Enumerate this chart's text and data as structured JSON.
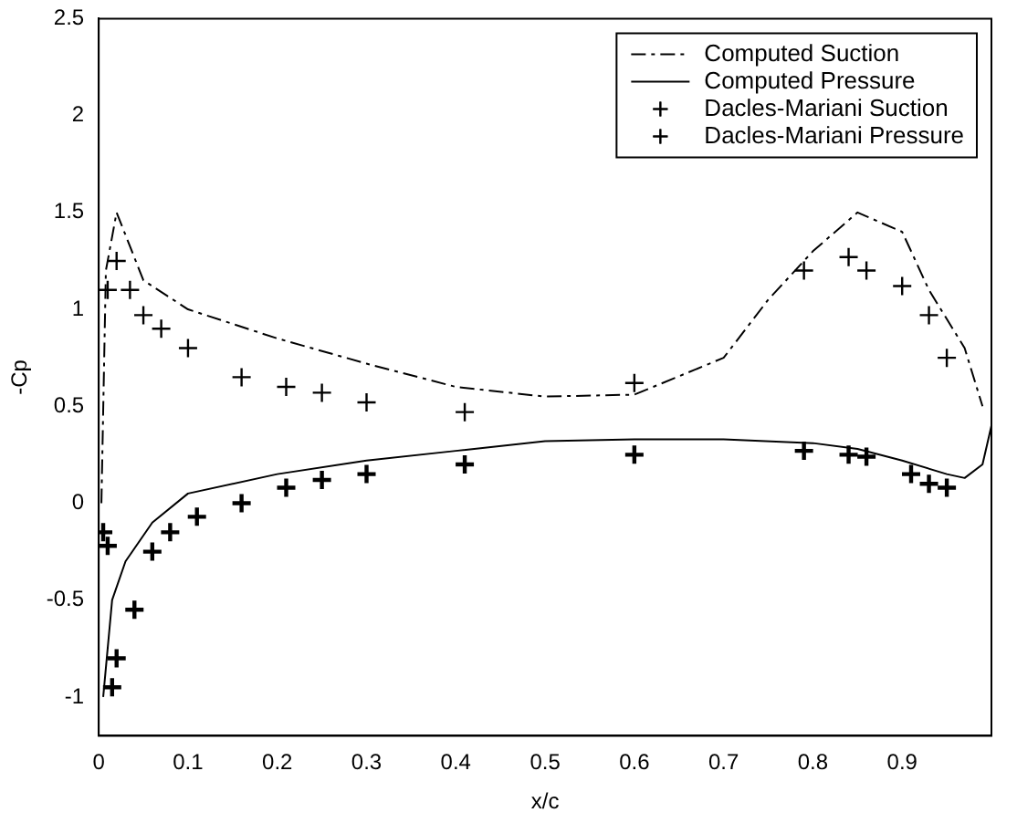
{
  "chart_data": {
    "type": "line",
    "xlabel": "x/c",
    "ylabel": "-Cp",
    "xlim": [
      0,
      1
    ],
    "xticks": [
      0,
      0.1,
      0.2,
      0.3,
      0.4,
      0.5,
      0.6,
      0.7,
      0.8,
      0.9
    ],
    "ylim": [
      -1.2,
      2.5
    ],
    "yticks": [
      -1,
      -0.5,
      0,
      0.5,
      1,
      1.5,
      2,
      2.5
    ],
    "grid": false,
    "legend": "top right",
    "series": [
      {
        "name": "Computed Suction",
        "color": "#000000",
        "line_style": "dashed",
        "marker": "none",
        "x": [
          0.003,
          0.008,
          0.02,
          0.05,
          0.1,
          0.2,
          0.3,
          0.4,
          0.5,
          0.6,
          0.7,
          0.75,
          0.8,
          0.85,
          0.9,
          0.93,
          0.97,
          0.99
        ],
        "values": [
          0,
          1.2,
          1.5,
          1.15,
          1.0,
          0.85,
          0.72,
          0.6,
          0.55,
          0.56,
          0.75,
          1.05,
          1.3,
          1.5,
          1.4,
          1.1,
          0.8,
          0.5
        ]
      },
      {
        "name": "Computed Pressure",
        "color": "#000000",
        "line_style": "solid",
        "marker": "none",
        "x": [
          0.005,
          0.015,
          0.03,
          0.06,
          0.1,
          0.2,
          0.3,
          0.4,
          0.5,
          0.6,
          0.7,
          0.8,
          0.85,
          0.9,
          0.95,
          0.97,
          0.99,
          1.0
        ],
        "values": [
          -1.0,
          -0.5,
          -0.3,
          -0.1,
          0.05,
          0.15,
          0.22,
          0.27,
          0.32,
          0.33,
          0.33,
          0.31,
          0.28,
          0.22,
          0.15,
          0.13,
          0.2,
          0.4
        ]
      },
      {
        "name": "Dacles-Mariani Suction",
        "type": "scatter",
        "color": "#000000",
        "marker": "cross",
        "x": [
          0.01,
          0.02,
          0.035,
          0.05,
          0.07,
          0.1,
          0.16,
          0.21,
          0.25,
          0.3,
          0.41,
          0.6,
          0.79,
          0.84,
          0.86,
          0.9,
          0.93,
          0.95
        ],
        "values": [
          1.1,
          1.25,
          1.1,
          0.97,
          0.9,
          0.8,
          0.65,
          0.6,
          0.57,
          0.52,
          0.47,
          0.62,
          1.2,
          1.27,
          1.2,
          1.12,
          0.97,
          0.75
        ]
      },
      {
        "name": "Dacles-Mariani Pressure",
        "type": "scatter",
        "color": "#000000",
        "marker": "cross",
        "x": [
          0.005,
          0.01,
          0.015,
          0.02,
          0.04,
          0.06,
          0.08,
          0.11,
          0.16,
          0.21,
          0.25,
          0.3,
          0.41,
          0.6,
          0.79,
          0.84,
          0.86,
          0.91,
          0.93,
          0.95
        ],
        "values": [
          -0.15,
          -0.22,
          -0.95,
          -0.8,
          -0.55,
          -0.25,
          -0.15,
          -0.07,
          0,
          0.08,
          0.12,
          0.15,
          0.2,
          0.25,
          0.27,
          0.25,
          0.24,
          0.15,
          0.1,
          0.08
        ]
      }
    ]
  }
}
